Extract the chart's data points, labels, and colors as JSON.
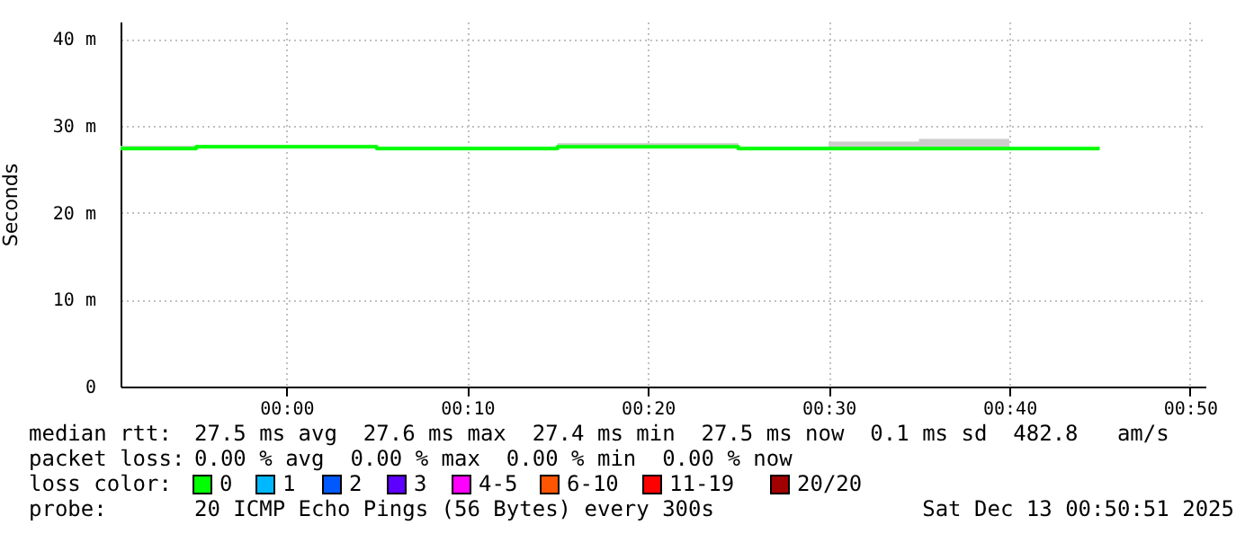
{
  "chart_data": {
    "type": "step",
    "ylabel": "Seconds",
    "x": [
      -0.153,
      -0.0833,
      0,
      0.0833,
      0.1667,
      0.25,
      0.3333,
      0.4167,
      0.5,
      0.5833,
      0.6667,
      0.75
    ],
    "series": [
      {
        "color": "#00ff00",
        "values": [
          27.4,
          27.6,
          27.6,
          27.4,
          27.4,
          27.6,
          27.6,
          27.4,
          27.4,
          27.4,
          27.4,
          27.4
        ],
        "lower": [
          27.4,
          27.6,
          27.6,
          27.4,
          27.4,
          27.6,
          27.6,
          27.4,
          27.4,
          27.4,
          27.4,
          27.4
        ],
        "upper": [
          27.7,
          27.8,
          27.8,
          27.6,
          27.6,
          28.0,
          28.0,
          27.6,
          28.2,
          28.5,
          27.4,
          27.4
        ]
      }
    ],
    "xlim": [
      -0.153,
      0.8475
    ],
    "xticks": [
      {
        "value": 0,
        "label": "00:00"
      },
      {
        "value": 0.1667,
        "label": "00:10"
      },
      {
        "value": 0.3333,
        "label": "00:20"
      },
      {
        "value": 0.5,
        "label": "00:30"
      },
      {
        "value": 0.6667,
        "label": "00:40"
      },
      {
        "value": 0.8333,
        "label": "00:50"
      }
    ],
    "ylim": [
      0,
      42
    ],
    "yticks": [
      0,
      {
        "value": 10,
        "label": "10 m"
      },
      {
        "value": 20,
        "label": "20 m"
      },
      {
        "value": 30,
        "label": "30 m"
      },
      {
        "value": 40,
        "label": "40 m"
      }
    ],
    "grid": true,
    "annotations": [
      "median rtt:",
      "27.5 ms avg  27.6 ms max  27.4 ms min  27.5 ms now  0.1 ms sd  482.8   am/s",
      "packet loss:",
      "0.00 % avg  0.00 % max  0.00 % min  0.00 % now",
      "loss color:",
      "0",
      "1",
      "2",
      "3",
      "4-5",
      "6-10",
      "11-19",
      "20/20",
      "probe:",
      "20 ICMP Echo Pings (56 Bytes) every 300s",
      "Sat Dec 13 00:50:51 2025"
    ]
  }
}
